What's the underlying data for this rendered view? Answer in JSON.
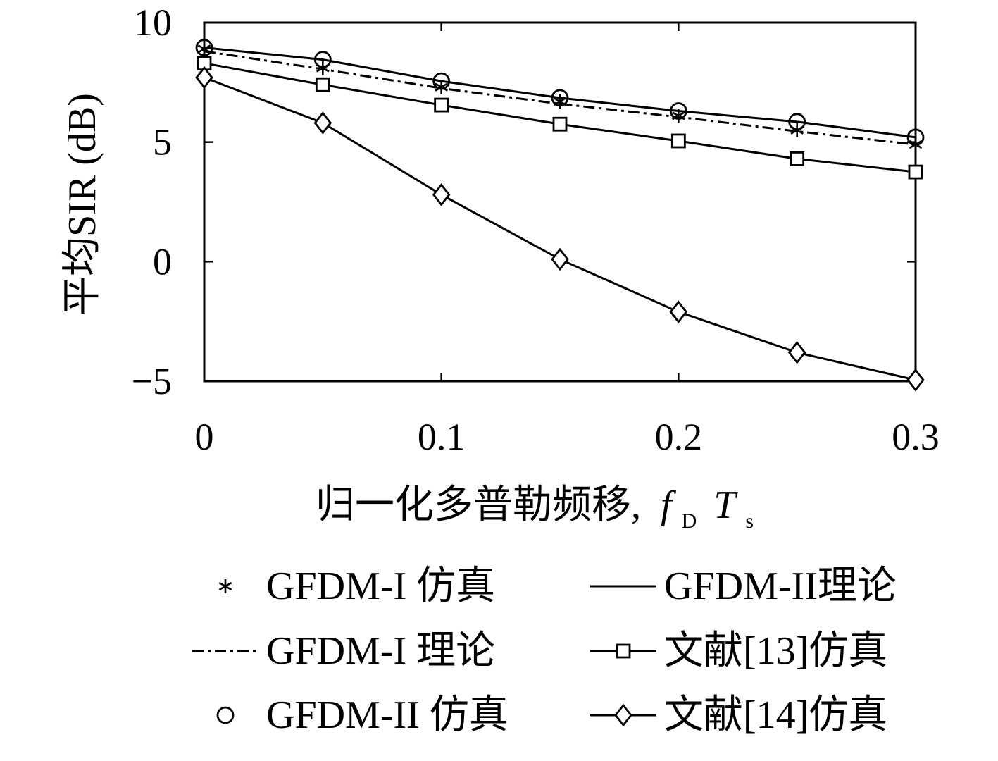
{
  "chart_data": {
    "type": "line",
    "title": "",
    "xlabel": "归一化多普勒频移,",
    "xlabel_symbol": {
      "f": "f",
      "f_sub": "D",
      "T": "T",
      "T_sub": "s"
    },
    "ylabel": "平均SIR (dB)",
    "xlim": [
      0,
      0.3
    ],
    "ylim": [
      -5,
      10
    ],
    "x_ticks": [
      "0",
      "0.1",
      "0.2",
      "0.3"
    ],
    "y_ticks": [
      "10",
      "5",
      "0",
      "−5"
    ],
    "x": [
      0,
      0.05,
      0.1,
      0.15,
      0.2,
      0.25,
      0.3
    ],
    "grid": false,
    "legend_position": "bottom",
    "series": [
      {
        "name": "GFDM-I 仿真",
        "style": "marker",
        "marker": "asterisk",
        "values": [
          8.9,
          8.1,
          7.3,
          6.7,
          6.1,
          5.5,
          4.9
        ]
      },
      {
        "name": "GFDM-II理论",
        "style": "solid",
        "marker": "none",
        "values": [
          8.95,
          8.45,
          7.55,
          6.85,
          6.3,
          5.85,
          5.2
        ]
      },
      {
        "name": "GFDM-I 理论",
        "style": "dashdot",
        "marker": "none",
        "values": [
          8.8,
          8.05,
          7.25,
          6.6,
          6.05,
          5.45,
          4.9
        ]
      },
      {
        "name": "文献[13]仿真",
        "style": "solid",
        "marker": "square",
        "values": [
          8.3,
          7.4,
          6.55,
          5.75,
          5.05,
          4.3,
          3.75
        ]
      },
      {
        "name": "GFDM-II 仿真",
        "style": "marker",
        "marker": "circle",
        "values": [
          8.95,
          8.45,
          7.55,
          6.85,
          6.3,
          5.85,
          5.2
        ]
      },
      {
        "name": "文献[14]仿真",
        "style": "solid",
        "marker": "diamond",
        "values": [
          7.7,
          5.8,
          2.8,
          0.1,
          -2.1,
          -3.8,
          -4.95
        ]
      }
    ]
  }
}
